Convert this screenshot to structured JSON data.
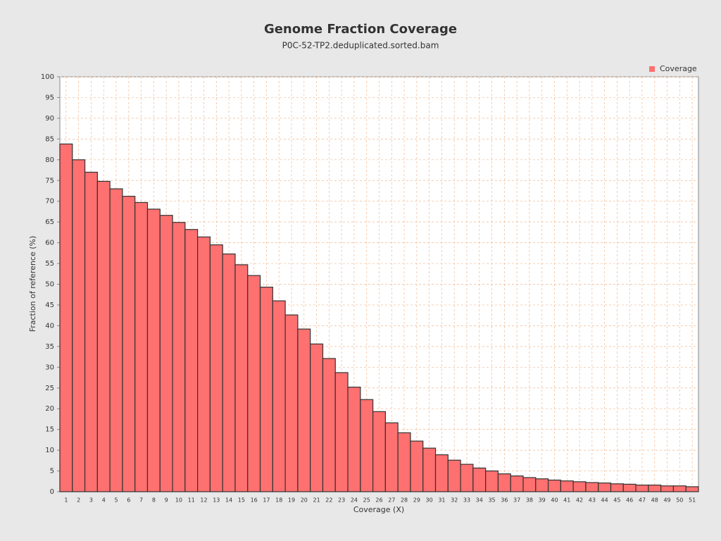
{
  "chart_data": {
    "type": "bar",
    "title": "Genome Fraction Coverage",
    "subtitle": "P0C-52-TP2.deduplicated.sorted.bam",
    "x_label": "Coverage (X)",
    "y_label": "Fraction of reference (%)",
    "categories": [
      "1",
      "2",
      "3",
      "4",
      "5",
      "6",
      "7",
      "8",
      "9",
      "10",
      "11",
      "12",
      "13",
      "14",
      "15",
      "16",
      "17",
      "18",
      "19",
      "20",
      "21",
      "22",
      "23",
      "24",
      "25",
      "26",
      "27",
      "28",
      "29",
      "30",
      "31",
      "32",
      "33",
      "34",
      "35",
      "36",
      "37",
      "38",
      "39",
      "40",
      "41",
      "42",
      "43",
      "44",
      "45",
      "46",
      "47",
      "48",
      "49",
      "50",
      "51"
    ],
    "series": [
      {
        "name": "Coverage",
        "color": "#ff7070",
        "values": [
          83.8,
          80,
          77,
          74.8,
          73,
          71.2,
          69.7,
          68.1,
          66.6,
          64.9,
          63.2,
          61.4,
          59.5,
          57.3,
          54.7,
          52.1,
          49.3,
          46.0,
          42.6,
          39.2,
          35.6,
          32.1,
          28.7,
          25.2,
          22.2,
          19.3,
          16.6,
          14.2,
          12.2,
          10.5,
          8.9,
          7.6,
          6.6,
          5.7,
          5.0,
          4.3,
          3.8,
          3.4,
          3.1,
          2.8,
          2.6,
          2.4,
          2.2,
          2.1,
          1.9,
          1.8,
          1.6,
          1.6,
          1.4,
          1.4,
          1.2
        ]
      }
    ],
    "ylim": [
      0,
      100
    ],
    "yticks": [
      0,
      5,
      10,
      15,
      20,
      25,
      30,
      35,
      40,
      45,
      50,
      55,
      60,
      65,
      70,
      75,
      80,
      85,
      90,
      95,
      100
    ],
    "grid": true,
    "legend": "top-right"
  }
}
